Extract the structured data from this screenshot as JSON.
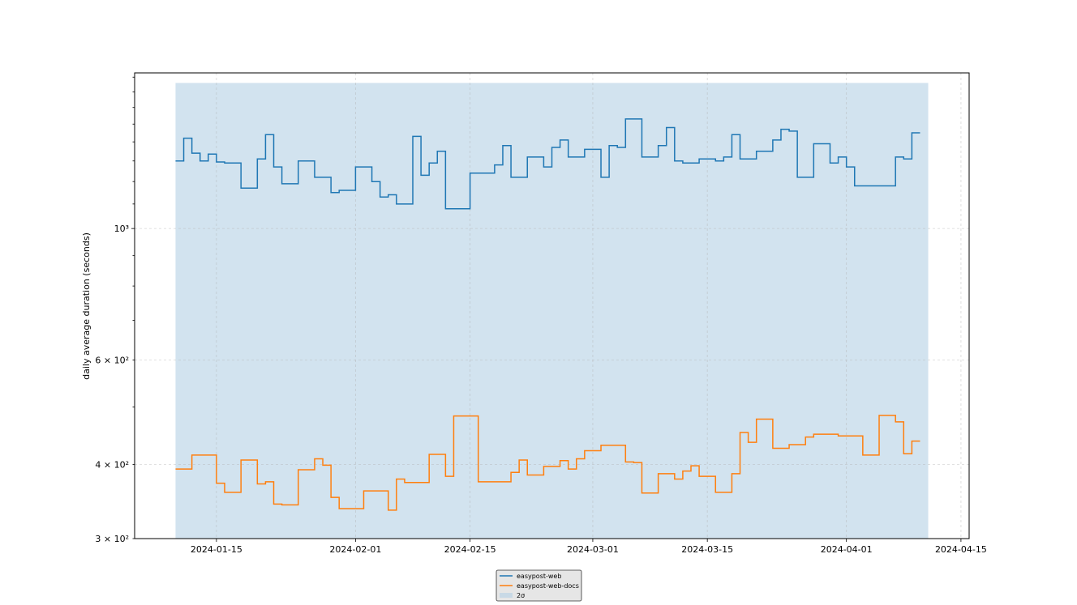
{
  "chart_data": {
    "type": "line",
    "drawstyle": "steps-post",
    "xlabel": "",
    "ylabel": "daily average duration (seconds)",
    "yscale": "log",
    "ylim": [
      300,
      1830
    ],
    "xlim": [
      "2024-01-05",
      "2024-04-16"
    ],
    "grid": true,
    "legend_position": "bottom-center",
    "x_ticks": [
      "2024-01-15",
      "2024-02-01",
      "2024-02-15",
      "2024-03-01",
      "2024-03-15",
      "2024-04-01",
      "2024-04-15"
    ],
    "y_ticks": [
      {
        "value": 300,
        "label": "3 × 10²"
      },
      {
        "value": 400,
        "label": "4 × 10²"
      },
      {
        "value": 600,
        "label": "6 × 10²"
      },
      {
        "value": 1000,
        "label": "10³"
      }
    ],
    "band": {
      "name": "2σ",
      "x": [
        "2024-01-10",
        "2024-04-11"
      ],
      "y": [
        300,
        1760
      ],
      "color": "#d2e3ef"
    },
    "series": [
      {
        "name": "easypost-web",
        "color": "#1f77b4",
        "x": [
          "2024-01-10",
          "2024-01-11",
          "2024-01-12",
          "2024-01-13",
          "2024-01-14",
          "2024-01-15",
          "2024-01-16",
          "2024-01-17",
          "2024-01-18",
          "2024-01-19",
          "2024-01-20",
          "2024-01-21",
          "2024-01-22",
          "2024-01-23",
          "2024-01-24",
          "2024-01-25",
          "2024-01-26",
          "2024-01-27",
          "2024-01-28",
          "2024-01-29",
          "2024-01-30",
          "2024-01-31",
          "2024-02-01",
          "2024-02-02",
          "2024-02-03",
          "2024-02-04",
          "2024-02-05",
          "2024-02-06",
          "2024-02-07",
          "2024-02-08",
          "2024-02-09",
          "2024-02-10",
          "2024-02-11",
          "2024-02-12",
          "2024-02-13",
          "2024-02-14",
          "2024-02-15",
          "2024-02-16",
          "2024-02-17",
          "2024-02-18",
          "2024-02-19",
          "2024-02-20",
          "2024-02-21",
          "2024-02-22",
          "2024-02-23",
          "2024-02-24",
          "2024-02-25",
          "2024-02-26",
          "2024-02-27",
          "2024-02-28",
          "2024-02-29",
          "2024-03-01",
          "2024-03-02",
          "2024-03-03",
          "2024-03-04",
          "2024-03-05",
          "2024-03-06",
          "2024-03-07",
          "2024-03-08",
          "2024-03-09",
          "2024-03-10",
          "2024-03-11",
          "2024-03-12",
          "2024-03-13",
          "2024-03-14",
          "2024-03-15",
          "2024-03-16",
          "2024-03-17",
          "2024-03-18",
          "2024-03-19",
          "2024-03-20",
          "2024-03-21",
          "2024-03-22",
          "2024-03-23",
          "2024-03-24",
          "2024-03-25",
          "2024-03-26",
          "2024-03-27",
          "2024-03-28",
          "2024-03-29",
          "2024-03-30",
          "2024-03-31",
          "2024-04-01",
          "2024-04-02",
          "2024-04-03",
          "2024-04-04",
          "2024-04-05",
          "2024-04-06",
          "2024-04-07",
          "2024-04-08",
          "2024-04-09",
          "2024-04-10"
        ],
        "values": [
          1300,
          1420,
          1340,
          1300,
          1335,
          1295,
          1290,
          1290,
          1170,
          1170,
          1310,
          1440,
          1270,
          1190,
          1190,
          1300,
          1300,
          1220,
          1220,
          1150,
          1160,
          1160,
          1270,
          1270,
          1200,
          1130,
          1140,
          1100,
          1100,
          1430,
          1230,
          1290,
          1350,
          1080,
          1080,
          1080,
          1240,
          1240,
          1240,
          1280,
          1380,
          1220,
          1220,
          1320,
          1320,
          1270,
          1370,
          1410,
          1320,
          1320,
          1360,
          1360,
          1220,
          1380,
          1370,
          1530,
          1530,
          1320,
          1320,
          1380,
          1480,
          1300,
          1290,
          1290,
          1310,
          1310,
          1300,
          1320,
          1440,
          1310,
          1310,
          1350,
          1350,
          1410,
          1470,
          1460,
          1220,
          1220,
          1390,
          1390,
          1290,
          1320,
          1270,
          1180,
          1180,
          1180,
          1180,
          1180,
          1320,
          1310,
          1450,
          1450
        ]
      },
      {
        "name": "easypost-web-docs",
        "color": "#ff7f0e",
        "x": [
          "2024-01-10",
          "2024-01-11",
          "2024-01-12",
          "2024-01-13",
          "2024-01-14",
          "2024-01-15",
          "2024-01-16",
          "2024-01-17",
          "2024-01-18",
          "2024-01-19",
          "2024-01-20",
          "2024-01-21",
          "2024-01-22",
          "2024-01-23",
          "2024-01-24",
          "2024-01-25",
          "2024-01-26",
          "2024-01-27",
          "2024-01-28",
          "2024-01-29",
          "2024-01-30",
          "2024-01-31",
          "2024-02-01",
          "2024-02-02",
          "2024-02-03",
          "2024-02-04",
          "2024-02-05",
          "2024-02-06",
          "2024-02-07",
          "2024-02-08",
          "2024-02-09",
          "2024-02-10",
          "2024-02-11",
          "2024-02-12",
          "2024-02-13",
          "2024-02-14",
          "2024-02-15",
          "2024-02-16",
          "2024-02-17",
          "2024-02-18",
          "2024-02-19",
          "2024-02-20",
          "2024-02-21",
          "2024-02-22",
          "2024-02-23",
          "2024-02-24",
          "2024-02-25",
          "2024-02-26",
          "2024-02-27",
          "2024-02-28",
          "2024-02-29",
          "2024-03-01",
          "2024-03-02",
          "2024-03-03",
          "2024-03-04",
          "2024-03-05",
          "2024-03-06",
          "2024-03-07",
          "2024-03-08",
          "2024-03-09",
          "2024-03-10",
          "2024-03-11",
          "2024-03-12",
          "2024-03-13",
          "2024-03-14",
          "2024-03-15",
          "2024-03-16",
          "2024-03-17",
          "2024-03-18",
          "2024-03-19",
          "2024-03-20",
          "2024-03-21",
          "2024-03-22",
          "2024-03-23",
          "2024-03-24",
          "2024-03-25",
          "2024-03-26",
          "2024-03-27",
          "2024-03-28",
          "2024-03-29",
          "2024-03-30",
          "2024-03-31",
          "2024-04-01",
          "2024-04-02",
          "2024-04-03",
          "2024-04-04",
          "2024-04-05",
          "2024-04-06",
          "2024-04-07",
          "2024-04-08",
          "2024-04-09",
          "2024-04-10"
        ],
        "values": [
          393,
          393,
          415,
          415,
          415,
          372,
          359,
          359,
          407,
          407,
          371,
          374,
          343,
          342,
          342,
          392,
          392,
          409,
          399,
          352,
          337,
          337,
          337,
          361,
          361,
          361,
          335,
          378,
          373,
          373,
          373,
          416,
          416,
          382,
          483,
          483,
          483,
          374,
          374,
          374,
          374,
          388,
          407,
          384,
          384,
          397,
          397,
          406,
          393,
          409,
          422,
          422,
          431,
          431,
          431,
          404,
          403,
          358,
          358,
          386,
          386,
          378,
          390,
          398,
          382,
          382,
          359,
          359,
          386,
          453,
          436,
          477,
          477,
          426,
          426,
          432,
          432,
          445,
          450,
          450,
          450,
          447,
          447,
          447,
          415,
          415,
          484,
          484,
          472,
          417,
          438,
          438
        ]
      }
    ],
    "legend": [
      {
        "label": "easypost-web",
        "color": "#1f77b4",
        "kind": "line"
      },
      {
        "label": "easypost-web-docs",
        "color": "#ff7f0e",
        "kind": "line"
      },
      {
        "label": "2σ",
        "color": "#c8d9e6",
        "kind": "patch"
      }
    ]
  }
}
